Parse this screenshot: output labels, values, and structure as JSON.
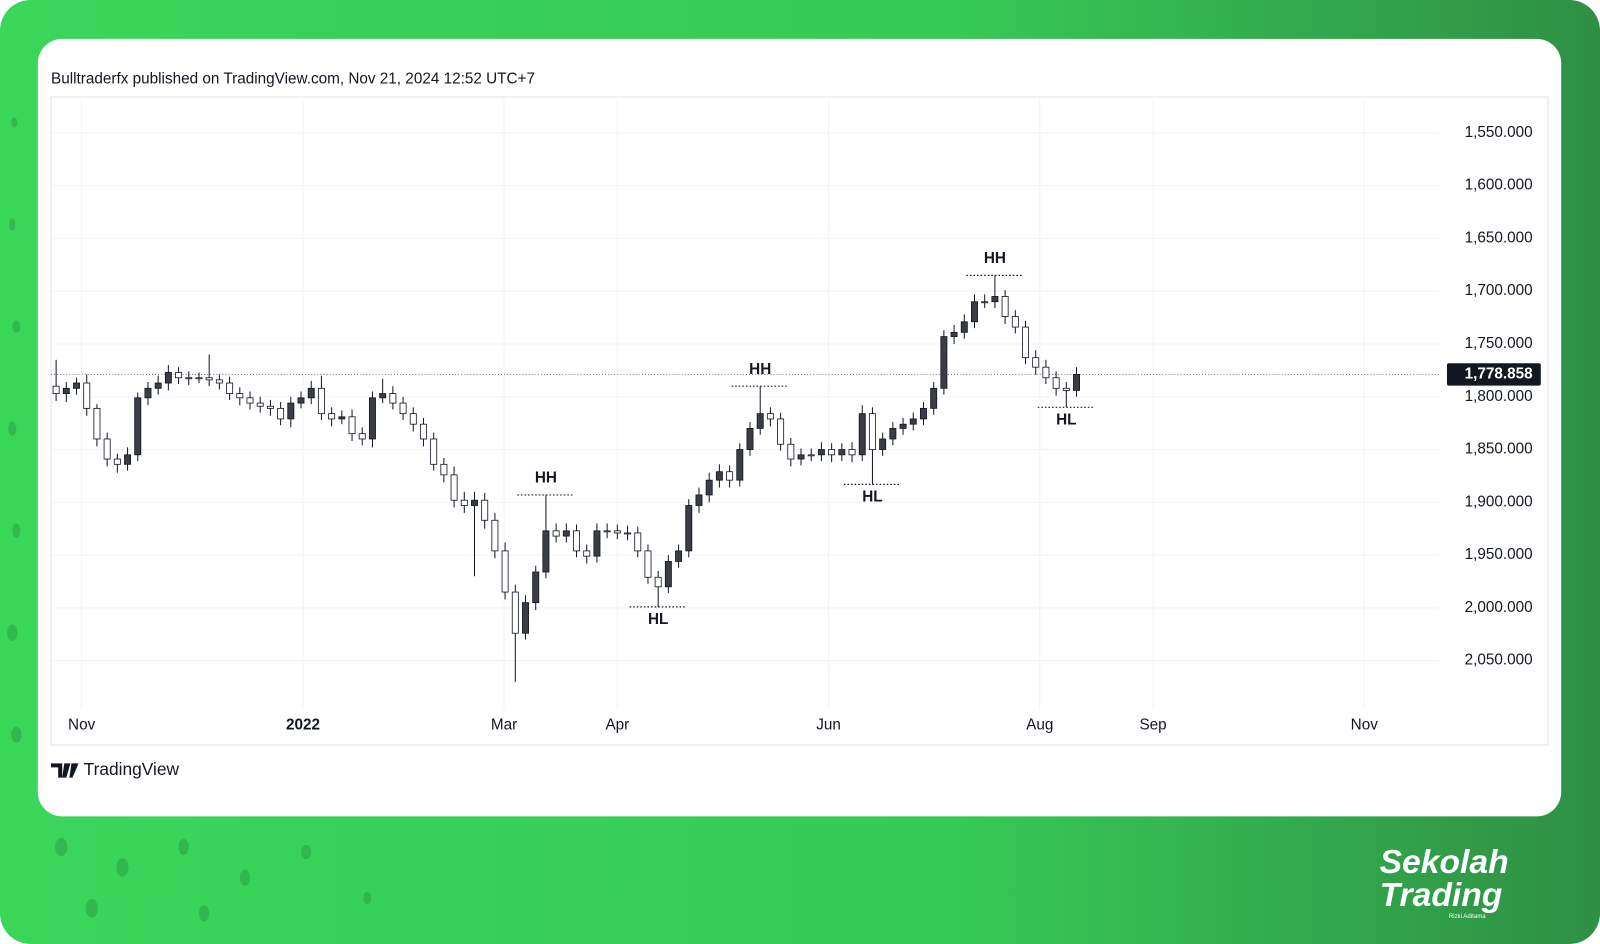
{
  "header": "Bulltraderfx published on TradingView.com, Nov 21, 2024 12:52 UTC+7",
  "footer": "TradingView",
  "brand": {
    "line1": "Sekolah",
    "line2": "Trading",
    "author": "Rizki Aditama"
  },
  "chart_data": {
    "type": "candlestick",
    "grid": true,
    "up_color": "#ffffff",
    "down_color": "#3a3d45",
    "wick_color": "#131722",
    "xlim": [
      -0.5,
      135.5
    ],
    "xticks": [
      {
        "value": 2.5,
        "label": "Nov"
      },
      {
        "value": 24.2,
        "label": "2022"
      },
      {
        "value": 43.9,
        "label": "Mar"
      },
      {
        "value": 55,
        "label": "Apr"
      },
      {
        "value": 75.7,
        "label": "Jun"
      },
      {
        "value": 96.4,
        "label": "Aug"
      },
      {
        "value": 107.5,
        "label": "Sep"
      },
      {
        "value": 128.2,
        "label": "Nov"
      }
    ],
    "ylim": [
      2096,
      1518
    ],
    "yticks": [
      {
        "value": 1550,
        "label": "1,550.000"
      },
      {
        "value": 1600,
        "label": "1,600.000"
      },
      {
        "value": 1650,
        "label": "1,650.000"
      },
      {
        "value": 1700,
        "label": "1,700.000"
      },
      {
        "value": 1750,
        "label": "1,750.000"
      },
      {
        "value": 1800,
        "label": "1,800.000"
      },
      {
        "value": 1850,
        "label": "1,850.000"
      },
      {
        "value": 1900,
        "label": "1,900.000"
      },
      {
        "value": 1950,
        "label": "1,950.000"
      },
      {
        "value": 2000,
        "label": "2,000.000"
      },
      {
        "value": 2050,
        "label": "2,050.000"
      }
    ],
    "last_price": {
      "value": 1778.858,
      "label": "1,778.858"
    },
    "open": [
      1790,
      1797,
      1792,
      1787,
      1811,
      1840,
      1859,
      1864,
      1855,
      1801,
      1792,
      1787,
      1777,
      1782,
      1782,
      1782,
      1784,
      1787,
      1797,
      1801,
      1806,
      1809,
      1811,
      1821,
      1806,
      1801,
      1792,
      1816,
      1821,
      1819,
      1835,
      1840,
      1801,
      1797,
      1806,
      1816,
      1826,
      1840,
      1864,
      1874,
      1898,
      1903,
      1898,
      1917,
      1946,
      1985,
      2024,
      1995,
      1966,
      1927,
      1932,
      1927,
      1946,
      1951,
      1927,
      1927,
      1929,
      1929,
      1946,
      1971,
      1980,
      1956,
      1946,
      1903,
      1893,
      1879,
      1871,
      1879,
      1850,
      1830,
      1816,
      1821,
      1845,
      1859,
      1855,
      1855,
      1850,
      1855,
      1850,
      1855,
      1816,
      1850,
      1840,
      1830,
      1826,
      1821,
      1811,
      1792,
      1743,
      1739,
      1729,
      1710,
      1710,
      1705,
      1724,
      1734,
      1763,
      1772,
      1782,
      1792,
      1794
    ],
    "high": [
      1804,
      1805,
      1798,
      1818,
      1847,
      1866,
      1872,
      1870,
      1861,
      1808,
      1798,
      1794,
      1788,
      1789,
      1787,
      1790,
      1793,
      1803,
      1808,
      1812,
      1815,
      1818,
      1827,
      1829,
      1811,
      1807,
      1822,
      1828,
      1826,
      1842,
      1846,
      1848,
      1806,
      1812,
      1822,
      1833,
      1847,
      1870,
      1881,
      1905,
      1910,
      1970,
      1925,
      1953,
      1992,
      2070,
      2030,
      2002,
      1972,
      1938,
      1938,
      1952,
      1958,
      1957,
      1934,
      1935,
      1936,
      1952,
      1977,
      1999,
      1986,
      1962,
      1952,
      1910,
      1900,
      1886,
      1886,
      1885,
      1856,
      1836,
      1828,
      1851,
      1866,
      1865,
      1861,
      1861,
      1862,
      1861,
      1862,
      1861,
      1883,
      1856,
      1846,
      1836,
      1832,
      1827,
      1817,
      1798,
      1750,
      1745,
      1735,
      1716,
      1716,
      1731,
      1740,
      1769,
      1779,
      1788,
      1799,
      1810,
      1800
    ],
    "low": [
      1765,
      1786,
      1782,
      1779,
      1807,
      1834,
      1854,
      1848,
      1796,
      1786,
      1780,
      1770,
      1772,
      1776,
      1777,
      1760,
      1779,
      1781,
      1791,
      1795,
      1800,
      1803,
      1805,
      1800,
      1795,
      1785,
      1780,
      1810,
      1813,
      1812,
      1829,
      1795,
      1783,
      1790,
      1800,
      1810,
      1820,
      1834,
      1858,
      1866,
      1890,
      1890,
      1891,
      1910,
      1938,
      1978,
      1988,
      1960,
      1893,
      1920,
      1920,
      1921,
      1940,
      1920,
      1920,
      1921,
      1922,
      1923,
      1940,
      1965,
      1950,
      1940,
      1897,
      1886,
      1872,
      1864,
      1865,
      1844,
      1824,
      1790,
      1810,
      1815,
      1839,
      1849,
      1849,
      1843,
      1844,
      1844,
      1843,
      1808,
      1810,
      1834,
      1824,
      1820,
      1815,
      1805,
      1786,
      1737,
      1732,
      1722,
      1703,
      1703,
      1685,
      1699,
      1718,
      1728,
      1756,
      1765,
      1776,
      1786,
      1772
    ],
    "close": [
      1797,
      1792,
      1787,
      1811,
      1840,
      1859,
      1864,
      1855,
      1801,
      1792,
      1787,
      1777,
      1782,
      1782,
      1782,
      1784,
      1787,
      1797,
      1801,
      1806,
      1809,
      1811,
      1821,
      1806,
      1801,
      1792,
      1816,
      1821,
      1819,
      1835,
      1840,
      1801,
      1797,
      1806,
      1816,
      1826,
      1840,
      1864,
      1874,
      1898,
      1903,
      1898,
      1917,
      1946,
      1985,
      2024,
      1995,
      1966,
      1927,
      1932,
      1927,
      1946,
      1951,
      1927,
      1927,
      1929,
      1929,
      1946,
      1971,
      1980,
      1956,
      1946,
      1903,
      1893,
      1879,
      1871,
      1879,
      1850,
      1830,
      1816,
      1821,
      1845,
      1859,
      1855,
      1855,
      1850,
      1855,
      1850,
      1855,
      1816,
      1850,
      1840,
      1830,
      1826,
      1821,
      1811,
      1792,
      1743,
      1739,
      1729,
      1710,
      1710,
      1705,
      1724,
      1734,
      1763,
      1772,
      1782,
      1792,
      1794,
      1778.858
    ],
    "annotations": [
      {
        "text": "HH",
        "x": 48,
        "y": 1893
      },
      {
        "text": "HL",
        "x": 59,
        "y": 1999
      },
      {
        "text": "HH",
        "x": 69,
        "y": 1790
      },
      {
        "text": "HL",
        "x": 80,
        "y": 1883
      },
      {
        "text": "HH",
        "x": 92,
        "y": 1685
      },
      {
        "text": "HL",
        "x": 99,
        "y": 1810
      }
    ]
  }
}
